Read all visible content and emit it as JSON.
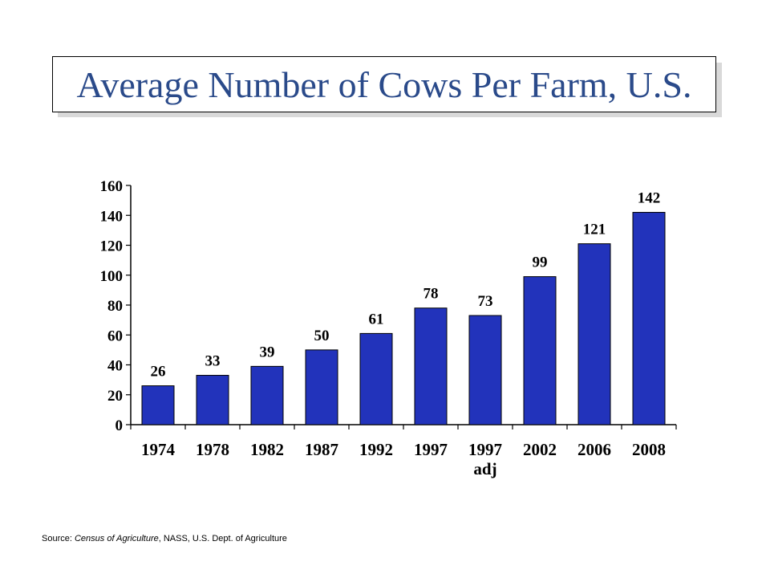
{
  "title": "Average Number of Cows Per Farm, U.S.",
  "source": {
    "prefix": "Source: ",
    "italic": "Census of Agriculture",
    "suffix": ", NASS,  U.S.  Dept.  of Agriculture"
  },
  "colors": {
    "title": "#2a4a8a",
    "bar": "#2233bb",
    "bar_outline": "#000000"
  },
  "chart_data": {
    "type": "bar",
    "categories": [
      "1974",
      "1978",
      "1982",
      "1987",
      "1992",
      "1997",
      "1997\nadj",
      "2002",
      "2006",
      "2008"
    ],
    "values": [
      26,
      33,
      39,
      50,
      61,
      78,
      73,
      99,
      121,
      142
    ],
    "data_labels": [
      "26",
      "33",
      "39",
      "50",
      "61",
      "78",
      "73",
      "99",
      "121",
      "142"
    ],
    "yticks": [
      0,
      20,
      40,
      60,
      80,
      100,
      120,
      140,
      160
    ],
    "ylim": [
      0,
      160
    ],
    "title": "Average Number of Cows Per Farm, U.S.",
    "xlabel": "",
    "ylabel": "",
    "grid": false,
    "legend": "none"
  }
}
